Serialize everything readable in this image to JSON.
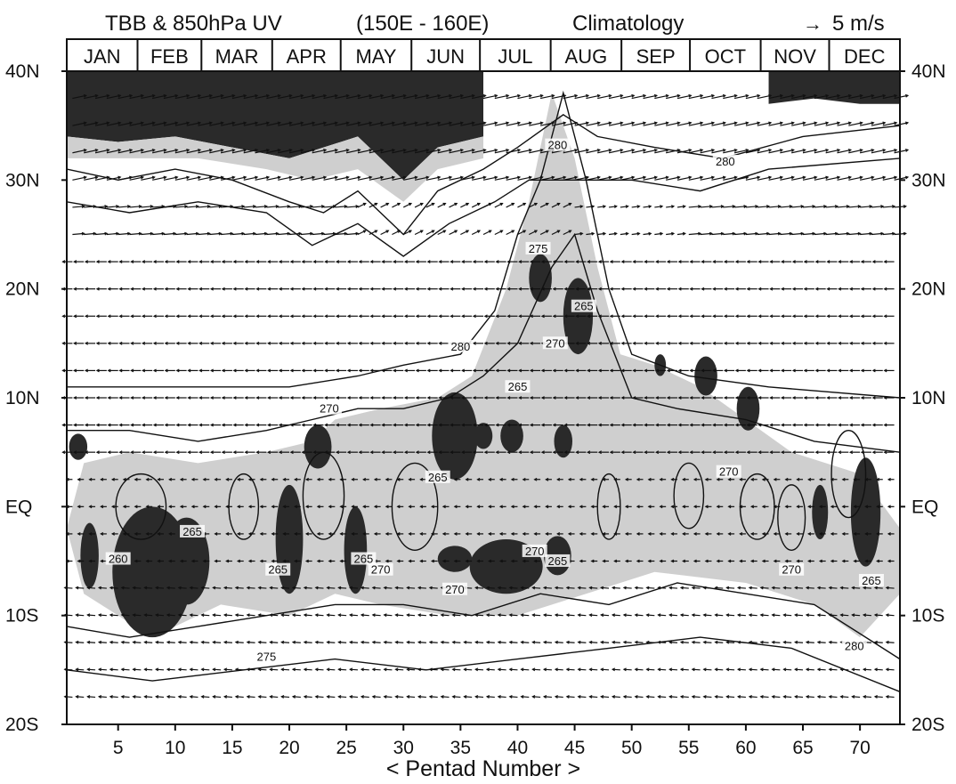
{
  "chart_data": {
    "type": "heatmap",
    "title": "TBB & 850hPa UV",
    "subtitle_region": "(150E - 160E)",
    "subtitle_period": "Climatology",
    "vector_key": {
      "arrow": "→",
      "label": "5 m/s"
    },
    "xlabel": "< Pentad Number >",
    "xlim": [
      0.5,
      73.5
    ],
    "ylim": [
      -20,
      40
    ],
    "x_ticks": [
      5,
      10,
      15,
      20,
      25,
      30,
      35,
      40,
      45,
      50,
      55,
      60,
      65,
      70
    ],
    "y_ticks": [
      {
        "value": 40,
        "label": "40N"
      },
      {
        "value": 30,
        "label": "30N"
      },
      {
        "value": 20,
        "label": "20N"
      },
      {
        "value": 10,
        "label": "10N"
      },
      {
        "value": 0,
        "label": "EQ"
      },
      {
        "value": -10,
        "label": "10S"
      },
      {
        "value": -20,
        "label": "20S"
      }
    ],
    "months": [
      {
        "label": "JAN",
        "start": 0.5
      },
      {
        "label": "FEB",
        "start": 6.7
      },
      {
        "label": "MAR",
        "start": 12.3
      },
      {
        "label": "APR",
        "start": 18.5
      },
      {
        "label": "MAY",
        "start": 24.5
      },
      {
        "label": "JUN",
        "start": 30.7
      },
      {
        "label": "JUL",
        "start": 36.7
      },
      {
        "label": "AUG",
        "start": 42.9
      },
      {
        "label": "SEP",
        "start": 49.1
      },
      {
        "label": "OCT",
        "start": 55.1
      },
      {
        "label": "NOV",
        "start": 61.3
      },
      {
        "label": "DEC",
        "start": 67.3
      }
    ],
    "contour_labels": [
      {
        "text": "260",
        "x": 5.0,
        "y": -5.0
      },
      {
        "text": "265",
        "x": 11.5,
        "y": -2.5
      },
      {
        "text": "265",
        "x": 19.0,
        "y": -6.0
      },
      {
        "text": "265",
        "x": 26.5,
        "y": -5.0
      },
      {
        "text": "270",
        "x": 28.0,
        "y": -6.0
      },
      {
        "text": "270",
        "x": 23.5,
        "y": 8.8
      },
      {
        "text": "265",
        "x": 33.0,
        "y": 2.5
      },
      {
        "text": "270",
        "x": 34.5,
        "y": -7.8
      },
      {
        "text": "280",
        "x": 35.0,
        "y": 14.5
      },
      {
        "text": "265",
        "x": 40.0,
        "y": 10.8
      },
      {
        "text": "270",
        "x": 41.5,
        "y": -4.3
      },
      {
        "text": "265",
        "x": 43.5,
        "y": -5.2
      },
      {
        "text": "275",
        "x": 41.8,
        "y": 23.5
      },
      {
        "text": "270",
        "x": 43.3,
        "y": 14.8
      },
      {
        "text": "265",
        "x": 45.8,
        "y": 18.2
      },
      {
        "text": "280",
        "x": 43.5,
        "y": 33.0
      },
      {
        "text": "280",
        "x": 58.2,
        "y": 31.5
      },
      {
        "text": "270",
        "x": 58.5,
        "y": 3.0
      },
      {
        "text": "270",
        "x": 64.0,
        "y": -6.0
      },
      {
        "text": "265",
        "x": 71.0,
        "y": -7.0
      },
      {
        "text": "280",
        "x": 69.5,
        "y": -13.0
      },
      {
        "text": "275",
        "x": 18.0,
        "y": -14.0
      }
    ],
    "shading": {
      "dark": "TBB < 265 K",
      "light": "265–275 K"
    }
  }
}
